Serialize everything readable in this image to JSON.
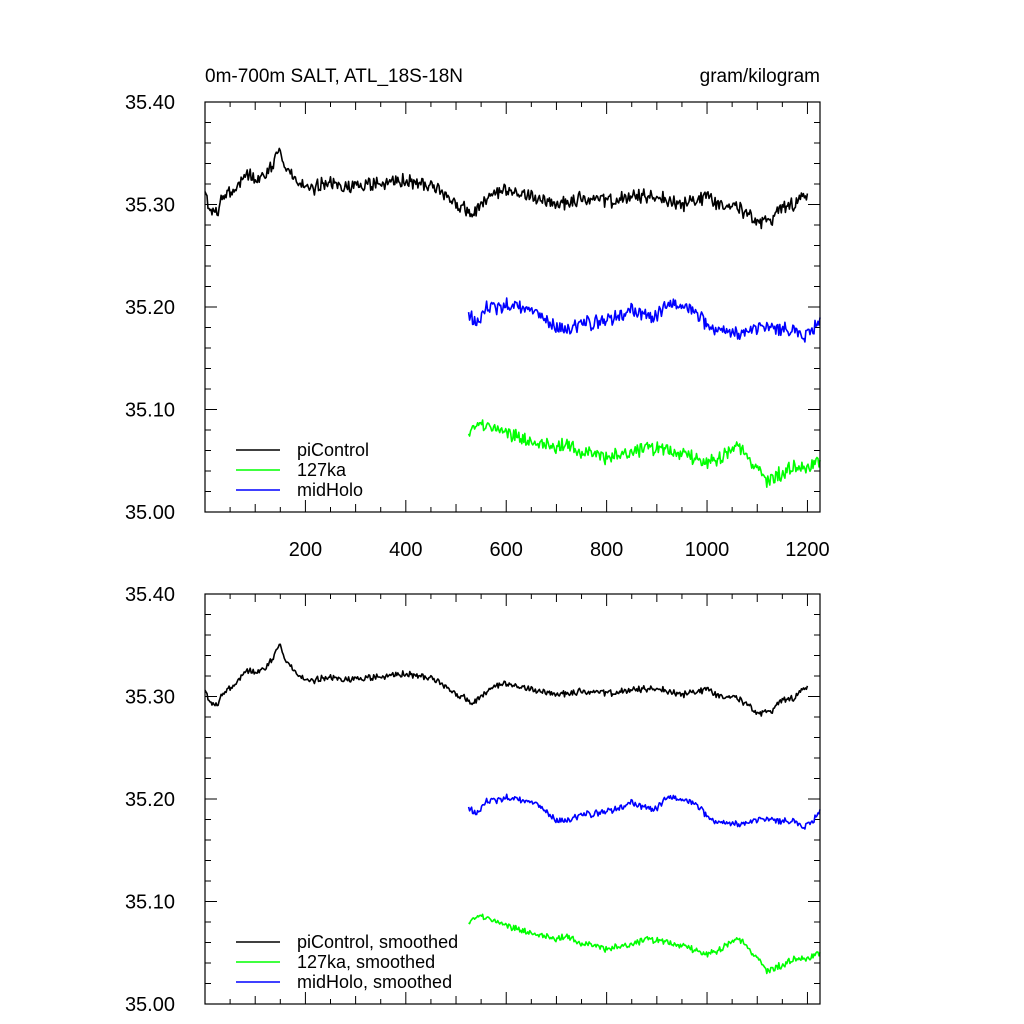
{
  "chart_data": [
    {
      "type": "line",
      "title_left": "0m-700m SALT, ATL_18S-18N",
      "title_right": "gram/kilogram",
      "xlabel": "",
      "ylabel": "",
      "xlim": [
        0,
        1225
      ],
      "ylim": [
        35.0,
        35.4
      ],
      "x_ticks": [
        200,
        400,
        600,
        800,
        1000,
        1200
      ],
      "x_tick_labels": [
        "200",
        "400",
        "600",
        "800",
        "1000",
        "1200"
      ],
      "y_ticks": [
        35.0,
        35.1,
        35.2,
        35.3,
        35.4
      ],
      "y_tick_labels": [
        "35.00",
        "35.10",
        "35.20",
        "35.30",
        "35.40"
      ],
      "grid": false,
      "legend_position": "bottom-left",
      "series": [
        {
          "name": "piControl",
          "color": "#000000",
          "x": [
            0,
            10,
            20,
            40,
            60,
            80,
            100,
            120,
            140,
            150,
            160,
            180,
            200,
            250,
            300,
            350,
            400,
            450,
            480,
            500,
            520,
            530,
            550,
            580,
            600,
            650,
            700,
            750,
            800,
            850,
            900,
            950,
            1000,
            1030,
            1050,
            1080,
            1100,
            1130,
            1150,
            1170,
            1200
          ],
          "values": [
            35.31,
            35.295,
            35.29,
            35.31,
            35.315,
            35.33,
            35.325,
            35.33,
            35.345,
            35.355,
            35.335,
            35.325,
            35.315,
            35.32,
            35.318,
            35.32,
            35.323,
            35.318,
            35.31,
            35.3,
            35.295,
            35.29,
            35.3,
            35.31,
            35.313,
            35.308,
            35.3,
            35.306,
            35.303,
            35.307,
            35.308,
            35.3,
            35.308,
            35.3,
            35.303,
            35.29,
            35.282,
            35.285,
            35.3,
            35.3,
            35.31
          ]
        },
        {
          "name": "127ka",
          "color": "#00ff00",
          "x": [
            525,
            540,
            550,
            580,
            600,
            620,
            650,
            680,
            700,
            720,
            750,
            780,
            800,
            820,
            850,
            880,
            900,
            920,
            950,
            980,
            1000,
            1020,
            1050,
            1070,
            1080,
            1100,
            1120,
            1150,
            1180,
            1200,
            1225
          ],
          "values": [
            35.078,
            35.083,
            35.088,
            35.078,
            35.076,
            35.073,
            35.07,
            35.066,
            35.062,
            35.066,
            35.058,
            35.055,
            35.052,
            35.056,
            35.058,
            35.064,
            35.062,
            35.06,
            35.057,
            35.052,
            35.047,
            35.052,
            35.063,
            35.062,
            35.055,
            35.045,
            35.03,
            35.038,
            35.045,
            35.045,
            35.05
          ]
        },
        {
          "name": "midHolo",
          "color": "#0000ff",
          "x": [
            525,
            540,
            560,
            580,
            600,
            630,
            660,
            680,
            700,
            720,
            750,
            780,
            800,
            820,
            850,
            870,
            900,
            920,
            950,
            980,
            1000,
            1020,
            1050,
            1080,
            1100,
            1130,
            1150,
            1170,
            1190,
            1210,
            1225
          ],
          "values": [
            35.19,
            35.185,
            35.198,
            35.2,
            35.203,
            35.2,
            35.198,
            35.188,
            35.178,
            35.178,
            35.185,
            35.185,
            35.187,
            35.19,
            35.198,
            35.192,
            35.19,
            35.205,
            35.2,
            35.195,
            35.182,
            35.175,
            35.175,
            35.175,
            35.18,
            35.18,
            35.178,
            35.18,
            35.17,
            35.178,
            35.19
          ]
        }
      ]
    },
    {
      "type": "line",
      "xlabel": "",
      "ylabel": "",
      "xlim": [
        0,
        1225
      ],
      "ylim": [
        35.0,
        35.4
      ],
      "y_ticks": [
        35.0,
        35.1,
        35.2,
        35.3,
        35.4
      ],
      "y_tick_labels": [
        "35.00",
        "35.10",
        "35.20",
        "35.30",
        "35.40"
      ],
      "grid": false,
      "legend_position": "bottom-left",
      "series": [
        {
          "name": "piControl, smoothed",
          "color": "#000000",
          "x": [
            0,
            10,
            20,
            40,
            60,
            80,
            100,
            120,
            140,
            150,
            160,
            180,
            200,
            250,
            300,
            350,
            400,
            450,
            480,
            500,
            520,
            530,
            550,
            580,
            600,
            650,
            700,
            750,
            800,
            850,
            900,
            950,
            1000,
            1030,
            1050,
            1080,
            1100,
            1130,
            1150,
            1170,
            1200
          ],
          "values": [
            35.305,
            35.295,
            35.29,
            35.305,
            35.312,
            35.325,
            35.324,
            35.328,
            35.342,
            35.352,
            35.335,
            35.324,
            35.315,
            35.318,
            35.317,
            35.319,
            35.322,
            35.318,
            35.31,
            35.302,
            35.298,
            35.293,
            35.3,
            35.31,
            35.312,
            35.307,
            35.302,
            35.305,
            35.303,
            35.306,
            35.308,
            35.302,
            35.307,
            35.3,
            35.302,
            35.292,
            35.283,
            35.286,
            35.298,
            35.298,
            35.31
          ]
        },
        {
          "name": "127ka, smoothed",
          "color": "#00ff00",
          "x": [
            525,
            540,
            550,
            580,
            600,
            620,
            650,
            680,
            700,
            720,
            750,
            780,
            800,
            820,
            850,
            880,
            900,
            920,
            950,
            980,
            1000,
            1020,
            1050,
            1070,
            1080,
            1100,
            1120,
            1150,
            1180,
            1200,
            1225
          ],
          "values": [
            35.08,
            35.084,
            35.087,
            35.079,
            35.076,
            35.073,
            35.07,
            35.066,
            35.063,
            35.066,
            35.059,
            35.056,
            35.053,
            35.056,
            35.058,
            35.064,
            35.062,
            35.06,
            35.057,
            35.052,
            35.048,
            35.052,
            35.062,
            35.062,
            35.056,
            35.046,
            35.032,
            35.038,
            35.045,
            35.045,
            35.05
          ]
        },
        {
          "name": "midHolo, smoothed",
          "color": "#0000ff",
          "x": [
            525,
            540,
            560,
            580,
            600,
            630,
            660,
            680,
            700,
            720,
            750,
            780,
            800,
            820,
            850,
            870,
            900,
            920,
            950,
            980,
            1000,
            1020,
            1050,
            1080,
            1100,
            1130,
            1150,
            1170,
            1190,
            1210,
            1225
          ],
          "values": [
            35.19,
            35.186,
            35.197,
            35.199,
            35.202,
            35.199,
            35.197,
            35.188,
            35.178,
            35.179,
            35.185,
            35.186,
            35.188,
            35.19,
            35.197,
            35.192,
            35.19,
            35.203,
            35.199,
            35.195,
            35.183,
            35.176,
            35.176,
            35.176,
            35.18,
            35.18,
            35.178,
            35.18,
            35.172,
            35.178,
            35.19
          ]
        }
      ]
    }
  ]
}
